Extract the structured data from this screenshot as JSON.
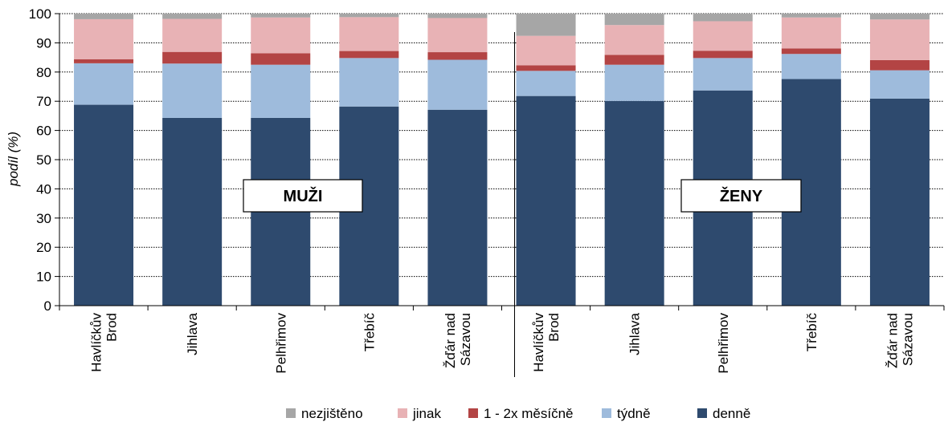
{
  "chart_data": {
    "type": "bar",
    "stacked": true,
    "percent": true,
    "ylabel": "podíl (%)",
    "ylim": [
      0,
      100
    ],
    "yticks": [
      0,
      10,
      20,
      30,
      40,
      50,
      60,
      70,
      80,
      90,
      100
    ],
    "grid": true,
    "legend_position": "bottom",
    "group_labels": [
      "MUŽI",
      "ŽENY"
    ],
    "categories": [
      [
        "Havlíčkův",
        "Brod"
      ],
      [
        "Jihlava"
      ],
      [
        "Pelhřimov"
      ],
      [
        "Třebíč"
      ],
      [
        "Žďár nad",
        "Sázavou"
      ],
      [
        "Havlíčkův",
        "Brod"
      ],
      [
        "Jihlava"
      ],
      [
        "Pelhřimov"
      ],
      [
        "Třebíč"
      ],
      [
        "Žďár nad",
        "Sázavou"
      ]
    ],
    "series": [
      {
        "name": "denně",
        "color": "#2e4a6e",
        "values": [
          68.8,
          64.3,
          64.3,
          68.2,
          67.1,
          71.8,
          70.1,
          73.7,
          77.6,
          70.9
        ]
      },
      {
        "name": "týdně",
        "color": "#9ebbdc",
        "values": [
          14.2,
          18.6,
          18.2,
          16.6,
          17.1,
          8.6,
          12.4,
          11.1,
          8.6,
          9.7
        ]
      },
      {
        "name": "1 - 2x měsíčně",
        "color": "#b34444",
        "values": [
          1.4,
          4.0,
          3.9,
          2.4,
          2.6,
          1.9,
          3.4,
          2.5,
          1.9,
          3.5
        ]
      },
      {
        "name": "jinak",
        "color": "#e8b2b5",
        "values": [
          13.7,
          11.3,
          12.3,
          11.6,
          11.7,
          10.1,
          10.2,
          10.1,
          10.6,
          13.9
        ]
      },
      {
        "name": "nezjištěno",
        "color": "#a6a6a6",
        "values": [
          1.9,
          1.8,
          1.3,
          1.2,
          1.5,
          7.6,
          3.9,
          2.6,
          1.3,
          2.0
        ]
      }
    ],
    "legend_order": [
      "nezjištěno",
      "jinak",
      "1 - 2x měsíčně",
      "týdně",
      "denně"
    ]
  }
}
